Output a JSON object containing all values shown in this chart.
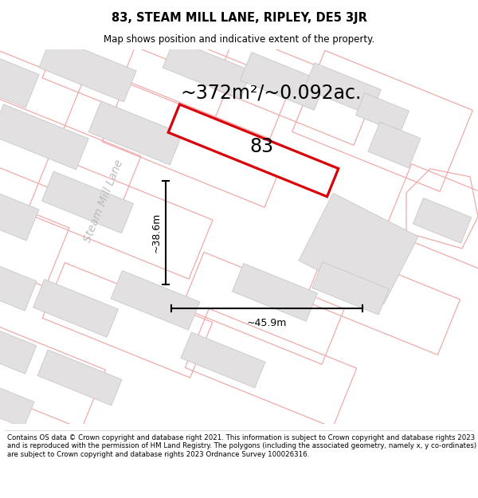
{
  "title": "83, STEAM MILL LANE, RIPLEY, DE5 3JR",
  "subtitle": "Map shows position and indicative extent of the property.",
  "area_label": "~372m²/~0.092ac.",
  "plot_number": "83",
  "dim_height": "~38.6m",
  "dim_width": "~45.9m",
  "street_label": "Steam Mill Lane",
  "footer_text": "Contains OS data © Crown copyright and database right 2021. This information is subject to Crown copyright and database rights 2023 and is reproduced with the permission of HM Land Registry. The polygons (including the associated geometry, namely x, y co-ordinates) are subject to Crown copyright and database rights 2023 Ordnance Survey 100026316.",
  "map_bg": "#f7f6f6",
  "red_color": "#d9000a",
  "building_fill": "#e2e0e0",
  "building_edge": "#c8c8c8",
  "parcel_edge": "#f0aaaa",
  "road_color": "#ffffff",
  "street_label_color": "#bbbbbb",
  "title_fontsize": 10.5,
  "subtitle_fontsize": 8.5,
  "area_fontsize": 17,
  "dim_fontsize": 9,
  "plot_label_fontsize": 17,
  "street_fontsize": 10
}
